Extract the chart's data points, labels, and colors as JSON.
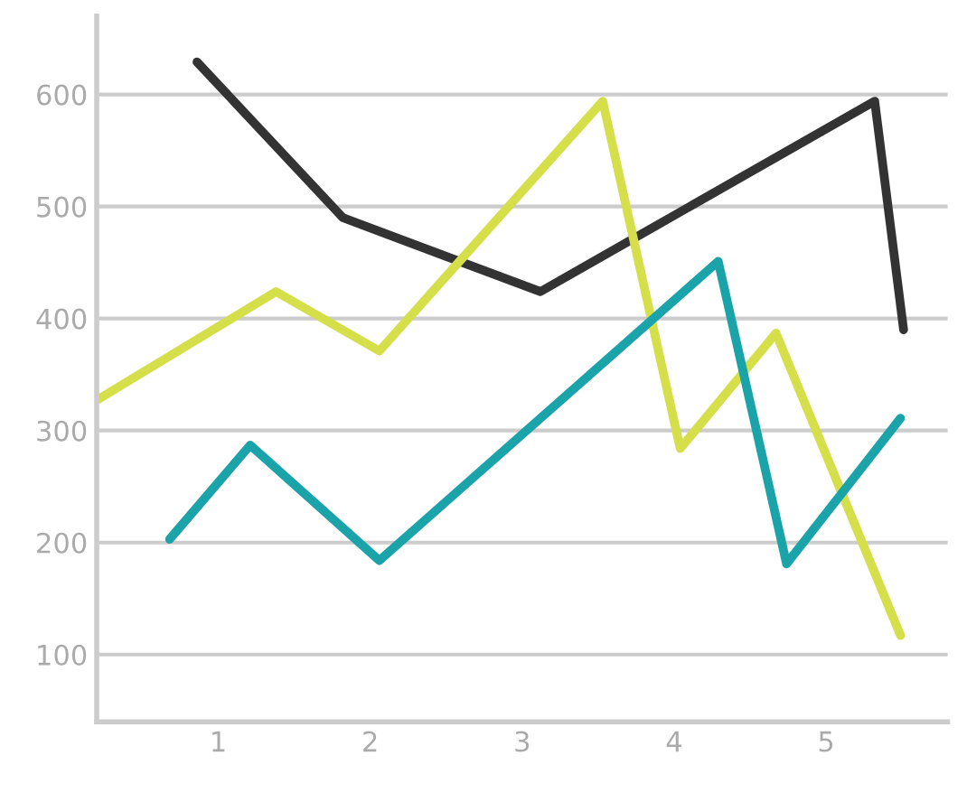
{
  "chart_data": {
    "type": "line",
    "xlim": [
      0.2,
      5.8
    ],
    "xticks": [
      1,
      2,
      3,
      4,
      5
    ],
    "ylim": [
      40,
      670
    ],
    "yticks": [
      100,
      200,
      300,
      400,
      500,
      600
    ],
    "grid": "y",
    "line_style": "solid",
    "marker": "none",
    "series": [
      {
        "color": "#333333",
        "x": [
          0.86,
          1.82,
          3.12,
          5.32,
          5.51
        ],
        "values": [
          629,
          490,
          424,
          594,
          390
        ]
      },
      {
        "color": "#d4df4a",
        "x": [
          0.2,
          1.38,
          2.06,
          3.53,
          4.04,
          4.67,
          5.49
        ],
        "values": [
          327,
          424,
          371,
          594,
          284,
          387,
          117
        ]
      },
      {
        "color": "#1aa3a8",
        "x": [
          0.68,
          1.21,
          2.06,
          4.29,
          4.74,
          5.49
        ],
        "values": [
          203,
          287,
          184,
          451,
          181,
          311
        ]
      }
    ]
  }
}
